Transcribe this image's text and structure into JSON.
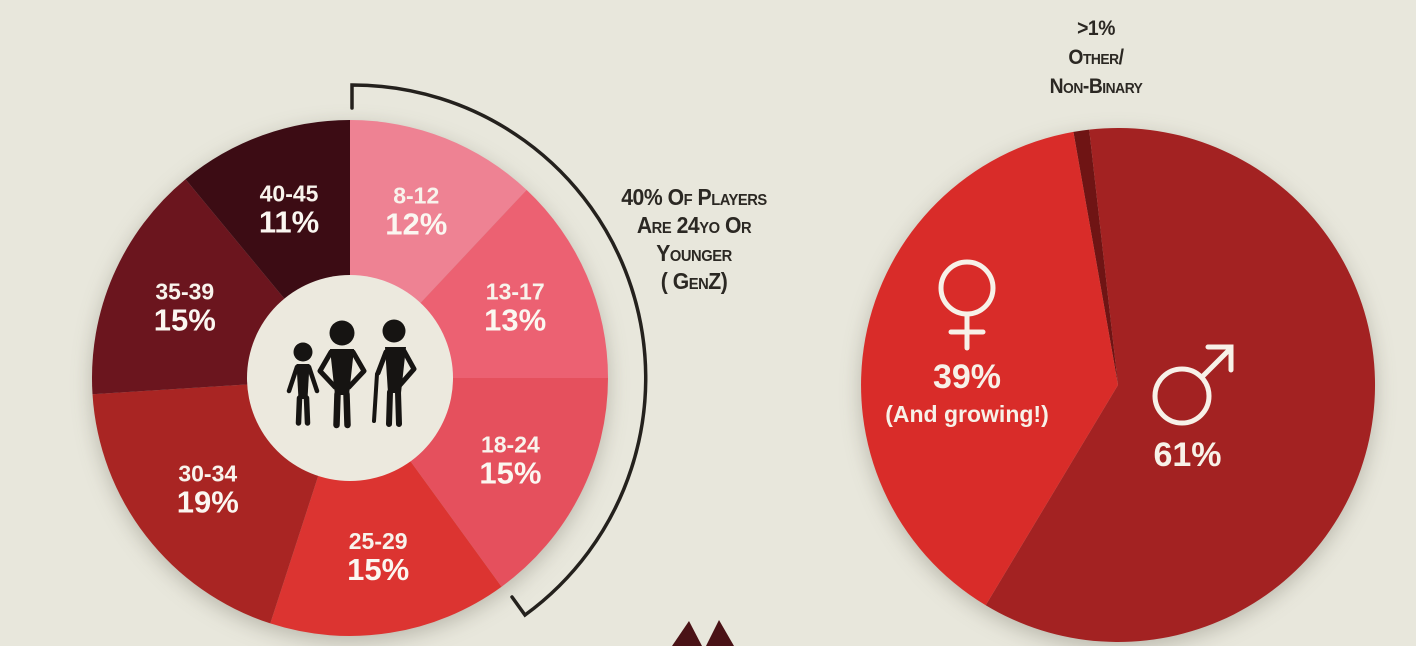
{
  "canvas": {
    "background": "#e8e7dc"
  },
  "chart_data": [
    {
      "id": "player-age-distribution",
      "type": "pie",
      "variant": "donut",
      "start_angle": 0,
      "direction": "clockwise",
      "legend_position": "on-slice",
      "categories": [
        "8-12",
        "13-17",
        "18-24",
        "25-29",
        "30-34",
        "35-39",
        "40-45"
      ],
      "values": [
        12,
        13,
        15,
        15,
        19,
        15,
        11
      ],
      "value_labels": [
        "12%",
        "13%",
        "15%",
        "15%",
        "19%",
        "15%",
        "11%"
      ],
      "colors": [
        "#ee8293",
        "#ec6172",
        "#e5505d",
        "#dc3431",
        "#a92523",
        "#6b151e",
        "#3c0c14"
      ],
      "hole_color": "#ece9de",
      "label_color": "#f8f3ec",
      "center_icon": "family-child-adult-elder",
      "annotation": {
        "lines": [
          "40% Of Players",
          "Are 24yo Or",
          "Younger",
          "( GenZ)"
        ],
        "color": "#2b2823"
      }
    },
    {
      "id": "player-gender-split",
      "type": "pie",
      "start_angle": -10,
      "direction": "clockwise",
      "legend_position": "on-slice",
      "categories": [
        "Other/Non-binary",
        "Male",
        "Female"
      ],
      "values": [
        1,
        61,
        39
      ],
      "value_labels": [
        ">1%",
        "61%",
        "39%"
      ],
      "colors": [
        "#6f1414",
        "#a32222",
        "#d92c29"
      ],
      "callout": {
        "lines": [
          ">1%",
          "Other/",
          "Non-Binary"
        ],
        "color": "#2b2823"
      },
      "female_label": {
        "pct": "39%",
        "note": "(And growing!)",
        "icon": "female-symbol"
      },
      "male_label": {
        "pct": "61%",
        "icon": "male-symbol"
      }
    }
  ]
}
